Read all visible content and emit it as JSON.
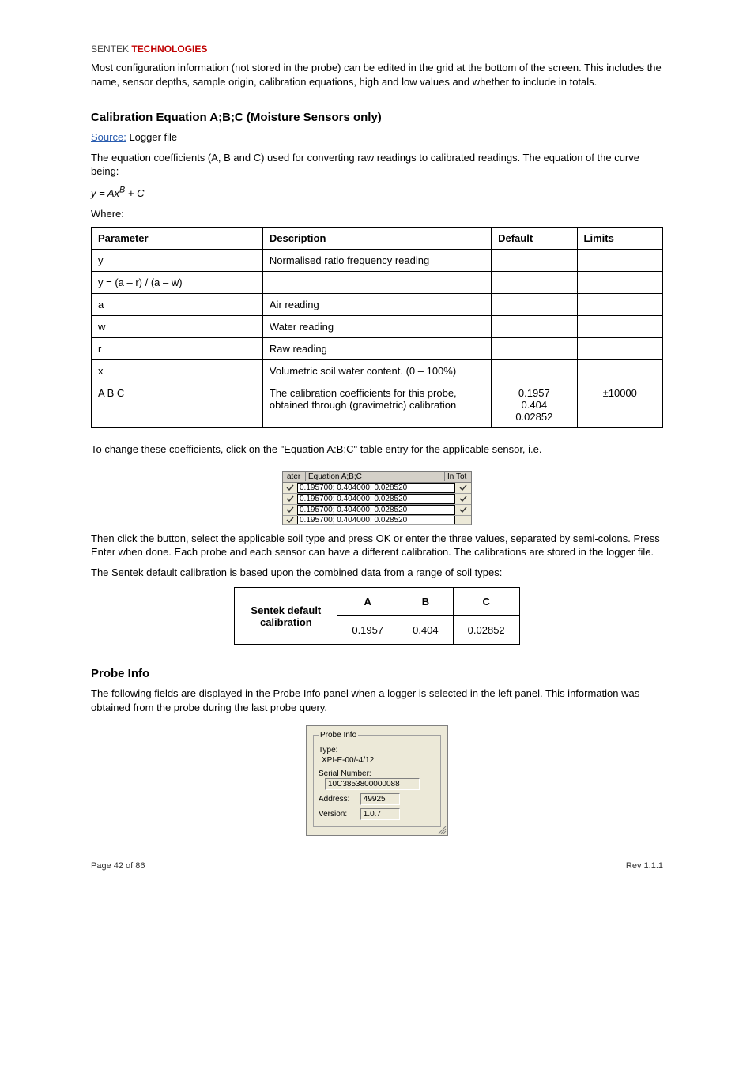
{
  "brand": {
    "word1": "SENTEK",
    "word2": "TECHNOLOGIES",
    "accent_color": "#c00000"
  },
  "intro": "Most configuration information (not stored in the probe) can be edited in the grid at the bottom of the screen. This includes the name, sensor depths, sample origin, calibration equations, high and low values and whether to include in totals.",
  "section": {
    "title": "Calibration Equation A;B;C (Moisture Sensors only)",
    "source_label": "Source:",
    "source_value": "Logger file",
    "desc": "The equation coefficients (A, B and C) used for converting raw readings to calibrated readings. The equation of the curve being:"
  },
  "equation": "y = Ax^B + C",
  "where_lead": "Where:",
  "param_table": {
    "headers": [
      "Parameter",
      "Description",
      "Default",
      "Limits"
    ],
    "rows": [
      [
        "y",
        "Normalised ratio frequency reading",
        "",
        ""
      ],
      [
        "y = (a – r) / (a – w)",
        "",
        "",
        ""
      ],
      [
        "a",
        "Air reading",
        "",
        ""
      ],
      [
        "w",
        "Water reading",
        "",
        ""
      ],
      [
        "r",
        "Raw reading",
        "",
        ""
      ],
      [
        "x",
        "Volumetric soil water content. (0 – 100%)",
        "",
        ""
      ],
      [
        "A B C",
        "The calibration coefficients for this probe, obtained through (gravimetric) calibration",
        "0.1957\n0.404\n0.02852",
        "±10000"
      ]
    ]
  },
  "eq_shot": {
    "header_left": "ater",
    "header_mid": "Equation  A;B;C",
    "header_right": "In Tot",
    "row_value": "0.195700; 0.404000; 0.028520",
    "checkmark_color": "#333333"
  },
  "after_eq": "To change these coefficients, click on the \"Equation A:B:C\" table entry for the applicable sensor, i.e.",
  "then_paragraph": "Then click the button, select the applicable soil type and press OK or enter the three values, separated by semi-colons. Press Enter when done. Each probe and each sensor can have a different calibration. The calibrations are stored in the logger file.",
  "default_paragraph": "The Sentek default calibration is based upon the combined data from a range of soil types:",
  "abc_table": {
    "label": "Sentek default\ncalibration",
    "headers": [
      "A",
      "B",
      "C"
    ],
    "values": [
      "0.1957",
      "0.404",
      "0.02852"
    ]
  },
  "probe_section": {
    "title": "Probe Info",
    "para": "The following fields are displayed in the Probe Info panel when a logger is selected in the left panel. This information was obtained from the probe during the last probe query."
  },
  "probe_panel": {
    "legend": "Probe Info",
    "type_label": "Type:",
    "type_value": "XPI-E-00/-4/12",
    "serial_label": "Serial Number:",
    "serial_value": "10C3853800000088",
    "address_label": "Address:",
    "address_value": "49925",
    "version_label": "Version:",
    "version_value": "1.0.7",
    "bg_color": "#ece9d8"
  },
  "footer": {
    "left": "Page 42 of 86",
    "right": "Rev 1.1.1"
  }
}
